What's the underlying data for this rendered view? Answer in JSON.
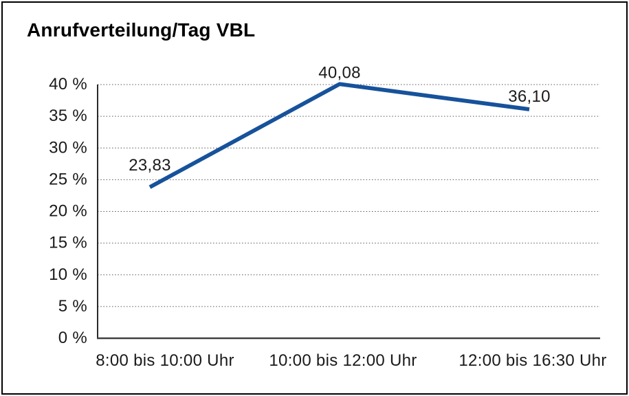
{
  "chart_data": {
    "type": "line",
    "title": "Anrufverteilung/Tag VBL",
    "categories": [
      "8:00 bis 10:00 Uhr",
      "10:00 bis 12:00 Uhr",
      "12:00 bis 16:30 Uhr"
    ],
    "values": [
      23.83,
      40.08,
      36.1
    ],
    "data_labels": [
      "23,83",
      "40,08",
      "36,10"
    ],
    "y_ticks": [
      {
        "value": 0,
        "label": "0 %"
      },
      {
        "value": 5,
        "label": "5 %"
      },
      {
        "value": 10,
        "label": "10 %"
      },
      {
        "value": 15,
        "label": "15 %"
      },
      {
        "value": 20,
        "label": "20 %"
      },
      {
        "value": 25,
        "label": "25 %"
      },
      {
        "value": 30,
        "label": "30 %"
      },
      {
        "value": 35,
        "label": "35 %"
      },
      {
        "value": 40,
        "label": "40 %"
      }
    ],
    "ylim": [
      0,
      40
    ],
    "xlabel": "",
    "ylabel": "",
    "legend": "none",
    "grid": "horizontal-dotted",
    "colors": {
      "line": "#17529B",
      "text": "#1a1a1a",
      "grid": "#555555",
      "x_axis": "#404040",
      "y_axis": "#111111",
      "border": "#000000",
      "background": "#ffffff"
    }
  }
}
